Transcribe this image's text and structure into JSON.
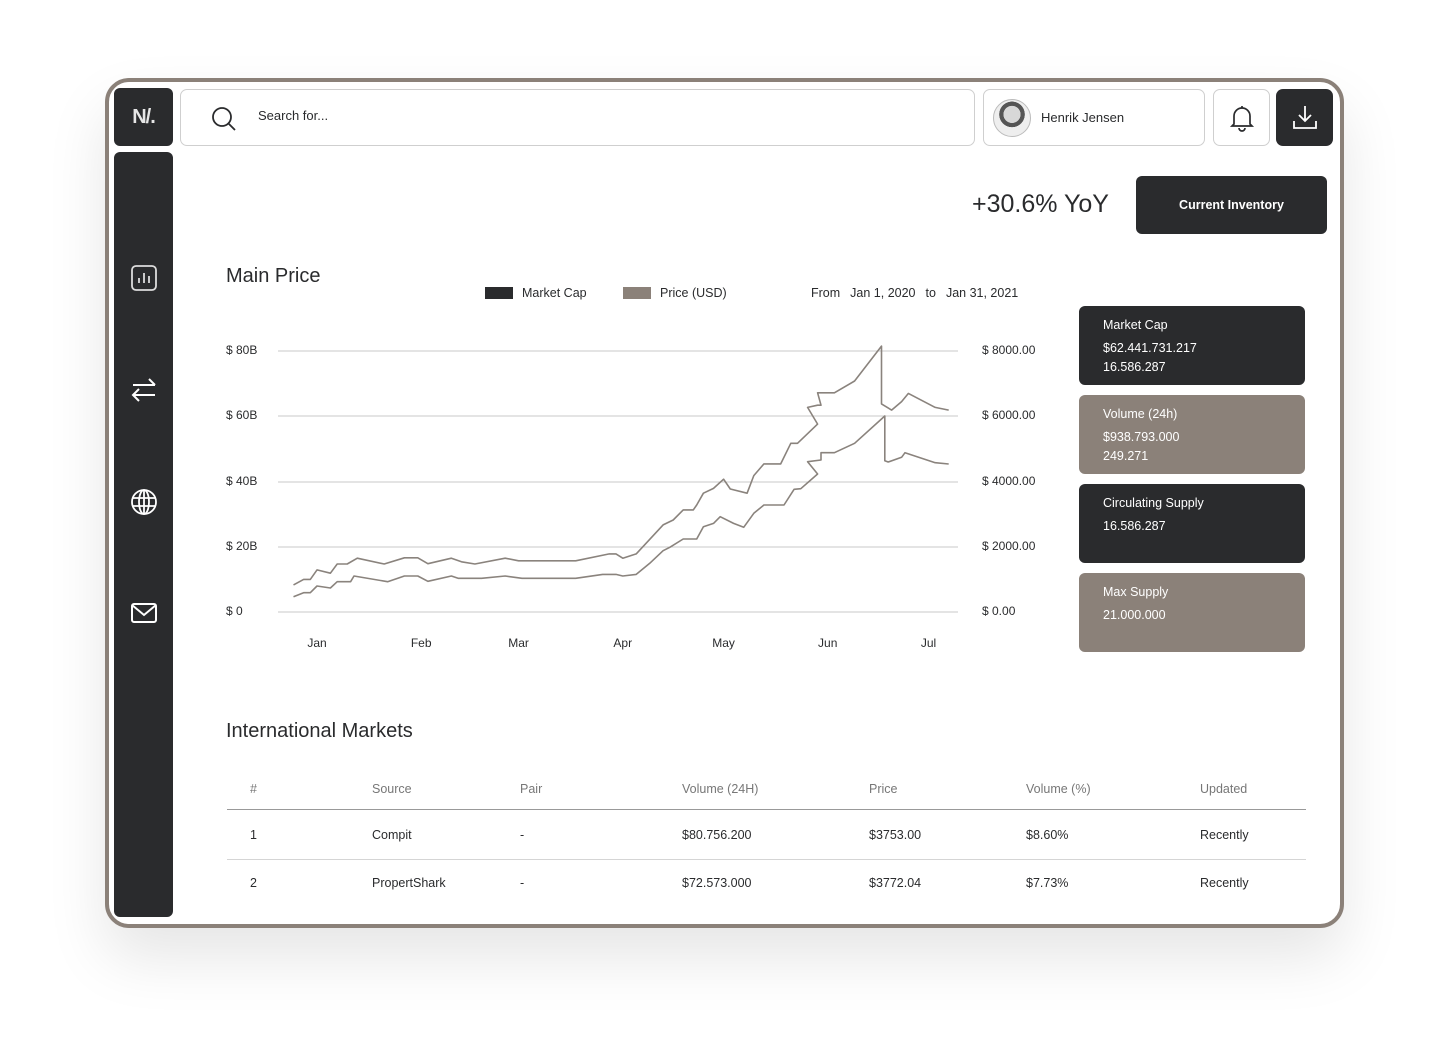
{
  "brand": {
    "logo_text": "N/."
  },
  "sidebar": {
    "items": [
      {
        "icon": "bar-chart-icon",
        "label": "Analytics"
      },
      {
        "icon": "transfer-icon",
        "label": "Transfers"
      },
      {
        "icon": "globe-icon",
        "label": "Markets"
      },
      {
        "icon": "mail-icon",
        "label": "Messages"
      }
    ]
  },
  "header": {
    "search_placeholder": "Search for...",
    "user_name": "Henrik Jensen",
    "icons": [
      "search-icon",
      "bell-icon",
      "download-icon"
    ]
  },
  "summary": {
    "yoy": "+30.6% YoY",
    "inventory_button": "Current Inventory"
  },
  "main_price": {
    "title": "Main Price",
    "range_from_label": "From",
    "range_from": "Jan 1, 2020",
    "range_to_label": "to",
    "range_to": "Jan 31, 2021"
  },
  "colors": {
    "dark": "#2a2b2d",
    "taupe": "#8b8179",
    "line": "#8a837d"
  },
  "chart_data": {
    "type": "line",
    "legend": [
      {
        "name": "Market Cap",
        "color": "#2a2b2d"
      },
      {
        "name": "Price (USD)",
        "color": "#8b8179"
      }
    ],
    "legend_placement": "top",
    "grid": true,
    "x_tick_labels": [
      "Jan",
      "Feb",
      "Mar",
      "Apr",
      "May",
      "Jun",
      "Jul"
    ],
    "y_left": {
      "tick_labels": [
        "$ 80B",
        "$ 60B",
        "$ 40B",
        "$ 20B",
        "$ 0"
      ],
      "range": [
        0,
        80
      ],
      "unit": "B USD"
    },
    "y_right": {
      "tick_labels": [
        "$ 8000.00",
        "$ 6000.00",
        "$ 4000.00",
        "$ 2000.00",
        "$ 0.00"
      ],
      "range": [
        0,
        8000
      ]
    },
    "series": [
      {
        "name": "Market Cap",
        "axis": "left",
        "points": [
          [
            "2020-01-08",
            8.3
          ],
          [
            "2020-01-11",
            10.0
          ],
          [
            "2020-01-13",
            10.0
          ],
          [
            "2020-01-15",
            12.9
          ],
          [
            "2020-01-19",
            11.9
          ],
          [
            "2020-01-21",
            14.7
          ],
          [
            "2020-01-24",
            14.7
          ],
          [
            "2020-01-27",
            16.5
          ],
          [
            "2020-02-04",
            14.7
          ],
          [
            "2020-02-10",
            16.6
          ],
          [
            "2020-02-14",
            16.6
          ],
          [
            "2020-02-17",
            14.8
          ],
          [
            "2020-02-24",
            16.5
          ],
          [
            "2020-02-27",
            15.4
          ],
          [
            "2020-03-02",
            14.7
          ],
          [
            "2020-03-11",
            16.5
          ],
          [
            "2020-03-15",
            15.7
          ],
          [
            "2020-04-01",
            15.7
          ],
          [
            "2020-04-11",
            17.8
          ],
          [
            "2020-04-13",
            17.8
          ],
          [
            "2020-04-15",
            16.5
          ],
          [
            "2020-04-19",
            17.8
          ],
          [
            "2020-04-27",
            26.7
          ],
          [
            "2020-04-30",
            28.2
          ],
          [
            "2020-05-03",
            31.3
          ],
          [
            "2020-05-06",
            31.3
          ],
          [
            "2020-05-07",
            32.8
          ],
          [
            "2020-05-09",
            36.4
          ],
          [
            "2020-05-12",
            37.9
          ],
          [
            "2020-05-15",
            40.7
          ],
          [
            "2020-05-17",
            37.7
          ],
          [
            "2020-05-22",
            36.4
          ],
          [
            "2020-05-24",
            41.8
          ],
          [
            "2020-05-27",
            45.4
          ],
          [
            "2020-06-01",
            45.4
          ],
          [
            "2020-06-04",
            51.7
          ],
          [
            "2020-06-06",
            51.7
          ],
          [
            "2020-06-12",
            57.6
          ],
          [
            "2020-06-09",
            62.7
          ],
          [
            "2020-06-12",
            63.4
          ],
          [
            "2020-06-13",
            63.4
          ],
          [
            "2020-06-12",
            67.2
          ],
          [
            "2020-06-17",
            67.2
          ],
          [
            "2020-06-23",
            70.8
          ],
          [
            "2020-07-01",
            81.5
          ],
          [
            "2020-07-01",
            63.8
          ],
          [
            "2020-07-04",
            61.9
          ],
          [
            "2020-07-07",
            64.5
          ],
          [
            "2020-07-09",
            67.0
          ],
          [
            "2020-07-17",
            62.7
          ],
          [
            "2020-07-21",
            61.9
          ]
        ]
      },
      {
        "name": "Price (USD)",
        "axis": "right",
        "points": [
          [
            "2020-01-08",
            469
          ],
          [
            "2020-01-11",
            592
          ],
          [
            "2020-01-13",
            592
          ],
          [
            "2020-01-15",
            797
          ],
          [
            "2020-01-19",
            736
          ],
          [
            "2020-01-21",
            929
          ],
          [
            "2020-01-25",
            929
          ],
          [
            "2020-01-26",
            1103
          ],
          [
            "2020-02-05",
            929
          ],
          [
            "2020-02-10",
            1103
          ],
          [
            "2020-02-14",
            1103
          ],
          [
            "2020-02-17",
            940
          ],
          [
            "2020-02-24",
            1103
          ],
          [
            "2020-02-26",
            1032
          ],
          [
            "2020-03-04",
            1032
          ],
          [
            "2020-03-11",
            1103
          ],
          [
            "2020-03-16",
            1032
          ],
          [
            "2020-04-01",
            1032
          ],
          [
            "2020-04-09",
            1154
          ],
          [
            "2020-04-13",
            1154
          ],
          [
            "2020-04-15",
            1103
          ],
          [
            "2020-04-19",
            1154
          ],
          [
            "2020-04-23",
            1491
          ],
          [
            "2020-04-27",
            1880
          ],
          [
            "2020-04-29",
            1982
          ],
          [
            "2020-05-03",
            2237
          ],
          [
            "2020-05-07",
            2237
          ],
          [
            "2020-05-09",
            2615
          ],
          [
            "2020-05-12",
            2717
          ],
          [
            "2020-05-14",
            2922
          ],
          [
            "2020-05-18",
            2717
          ],
          [
            "2020-05-21",
            2595
          ],
          [
            "2020-05-24",
            3024
          ],
          [
            "2020-05-27",
            3280
          ],
          [
            "2020-06-02",
            3280
          ],
          [
            "2020-06-05",
            3760
          ],
          [
            "2020-06-07",
            3780
          ],
          [
            "2020-06-12",
            4230
          ],
          [
            "2020-06-09",
            4607
          ],
          [
            "2020-06-13",
            4659
          ],
          [
            "2020-06-13",
            4883
          ],
          [
            "2020-06-17",
            4883
          ],
          [
            "2020-06-23",
            5170
          ],
          [
            "2020-07-02",
            6007
          ],
          [
            "2020-07-02",
            4638
          ],
          [
            "2020-07-03",
            4598
          ],
          [
            "2020-07-07",
            4741
          ],
          [
            "2020-07-08",
            4883
          ],
          [
            "2020-07-17",
            4577
          ],
          [
            "2020-07-21",
            4536
          ]
        ]
      }
    ]
  },
  "stats": [
    {
      "title": "Market Cap",
      "lines": [
        "$62.441.731.217",
        "16.586.287"
      ],
      "theme": "dark"
    },
    {
      "title": "Volume (24h)",
      "lines": [
        "$938.793.000",
        "249.271"
      ],
      "theme": "taupe"
    },
    {
      "title": "Circulating Supply",
      "lines": [
        "16.586.287"
      ],
      "theme": "dark"
    },
    {
      "title": "Max Supply",
      "lines": [
        "21.000.000"
      ],
      "theme": "taupe"
    }
  ],
  "markets": {
    "title": "International Markets",
    "columns": [
      "#",
      "Source",
      "Pair",
      "Volume (24H)",
      "Price",
      "Volume (%)",
      "Updated"
    ],
    "rows": [
      [
        "1",
        "Compit",
        "-",
        "$80.756.200",
        "$3753.00",
        "$8.60%",
        "Recently"
      ],
      [
        "2",
        "PropertShark",
        "-",
        "$72.573.000",
        "$3772.04",
        "$7.73%",
        "Recently"
      ]
    ]
  }
}
